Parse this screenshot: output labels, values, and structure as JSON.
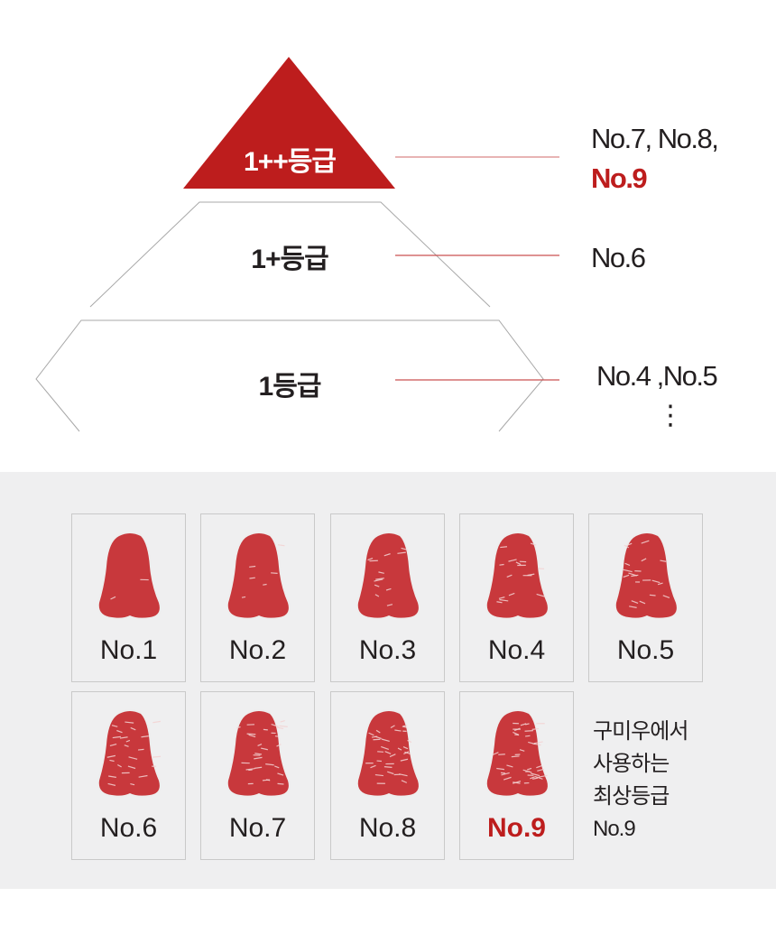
{
  "pyramid": {
    "tiers": [
      {
        "label": "1++등급",
        "grades_line1": "No.7, No.8,",
        "grades_line2": "No.9"
      },
      {
        "label": "1+등급",
        "grades_line1": "No.6"
      },
      {
        "label": "1등급",
        "grades_line1": "No.4 ,No.5",
        "continuation": "⋮"
      }
    ]
  },
  "colors": {
    "accent": "#bd1d1d",
    "connector": "#d98686",
    "gray_bg": "#efeff0"
  },
  "samples": [
    {
      "label": "No.1",
      "marbling": 0.05
    },
    {
      "label": "No.2",
      "marbling": 0.15
    },
    {
      "label": "No.3",
      "marbling": 0.3
    },
    {
      "label": "No.4",
      "marbling": 0.4
    },
    {
      "label": "No.5",
      "marbling": 0.5
    },
    {
      "label": "No.6",
      "marbling": 0.6
    },
    {
      "label": "No.7",
      "marbling": 0.7
    },
    {
      "label": "No.8",
      "marbling": 0.8
    },
    {
      "label": "No.9",
      "marbling": 0.95,
      "highlight": true
    }
  ],
  "note": {
    "lines": [
      "구미우에서",
      "사용하는",
      "최상등급",
      "No.9"
    ]
  }
}
